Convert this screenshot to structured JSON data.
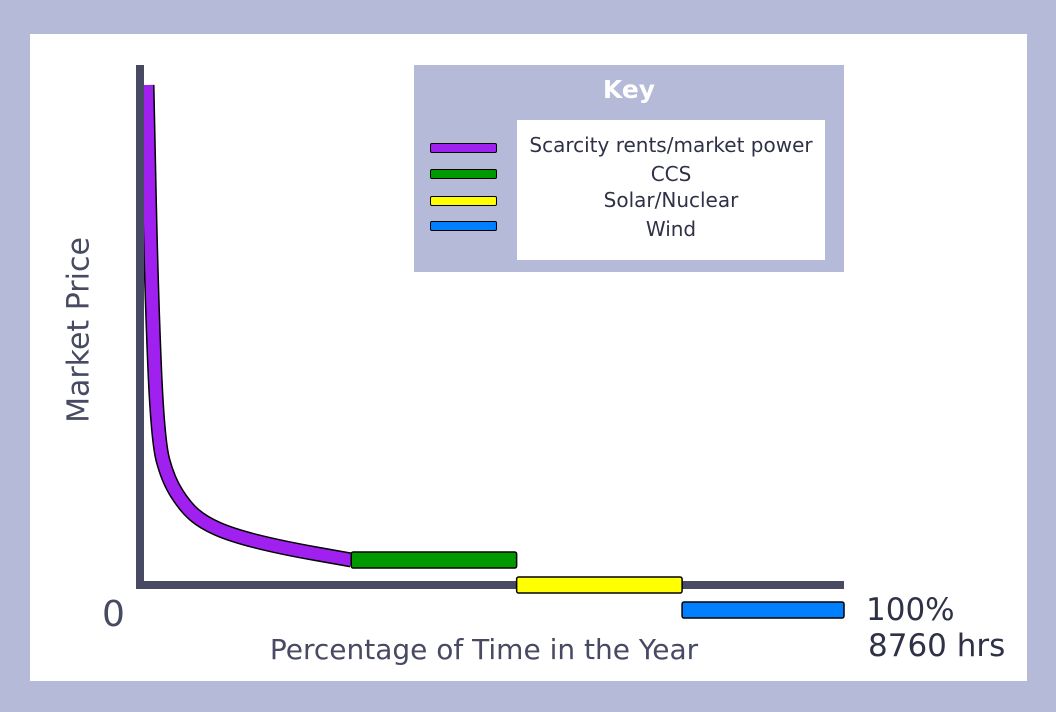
{
  "chart_data": {
    "type": "line",
    "title": "",
    "xlabel": "Percentage of Time in the Year",
    "ylabel": "Market Price",
    "x_start_label": "0",
    "x_end_label": "100%",
    "x_end_sublabel": "8760 hrs",
    "xlim": [
      0,
      100
    ],
    "ylim": [
      0,
      100
    ],
    "grid": false,
    "legend": {
      "title": "Key",
      "placement": "top-right"
    },
    "series": [
      {
        "name": "Scarcity rents/market power",
        "color": "#a020f0",
        "points": [
          [
            1,
            100
          ],
          [
            1.6,
            60
          ],
          [
            2.5,
            29
          ],
          [
            4,
            21
          ],
          [
            6.5,
            15.5
          ],
          [
            9,
            12.5
          ],
          [
            13,
            10
          ],
          [
            20,
            7.5
          ],
          [
            30,
            5
          ]
        ]
      },
      {
        "name": "CCS",
        "color": "#009900",
        "x": [
          30,
          53.5
        ],
        "y": 5
      },
      {
        "name": "Solar/Nuclear",
        "color": "#ffff00",
        "x": [
          53.5,
          77
        ],
        "y": 0
      },
      {
        "name": "Wind",
        "color": "#0080ff",
        "x": [
          77,
          100
        ],
        "y": -5
      }
    ]
  }
}
